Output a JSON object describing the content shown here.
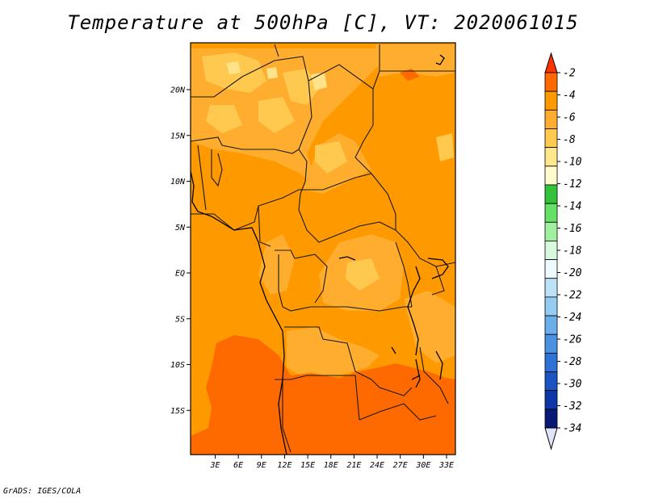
{
  "title": "Temperature at 500hPa [C], VT: 2020061015",
  "credit": "GrADS: IGES/COLA",
  "map": {
    "lat_labels": [
      {
        "label": "20N",
        "lat": 20
      },
      {
        "label": "15N",
        "lat": 15
      },
      {
        "label": "10N",
        "lat": 10
      },
      {
        "label": "5N",
        "lat": 5
      },
      {
        "label": "EQ",
        "lat": 0
      },
      {
        "label": "5S",
        "lat": -5
      },
      {
        "label": "10S",
        "lat": -10
      },
      {
        "label": "15S",
        "lat": -15
      }
    ],
    "lon_labels": [
      {
        "label": "3E",
        "lon": 3
      },
      {
        "label": "6E",
        "lon": 6
      },
      {
        "label": "9E",
        "lon": 9
      },
      {
        "label": "12E",
        "lon": 12
      },
      {
        "label": "15E",
        "lon": 15
      },
      {
        "label": "18E",
        "lon": 18
      },
      {
        "label": "21E",
        "lon": 21
      },
      {
        "label": "24E",
        "lon": 24
      },
      {
        "label": "27E",
        "lon": 27
      },
      {
        "label": "30E",
        "lon": 30
      },
      {
        "label": "33E",
        "lon": 33
      }
    ],
    "field_colors": {
      "warm_-2": "#ff6a00",
      "warm_-4": "#ff9900",
      "warm_-6": "#ffad2e",
      "warm_-8": "#ffc84f",
      "warm_-10": "#ffe28a"
    }
  },
  "colorbar": {
    "labels": [
      "-2",
      "-4",
      "-6",
      "-8",
      "-10",
      "-12",
      "-14",
      "-16",
      "-18",
      "-20",
      "-22",
      "-24",
      "-26",
      "-28",
      "-30",
      "-32",
      "-34"
    ],
    "colors": [
      "#ff3300",
      "#ff6a00",
      "#ff9900",
      "#ffad2e",
      "#ffc84f",
      "#ffe88c",
      "#fffbcc",
      "#33c23a",
      "#66e066",
      "#a0f0a0",
      "#d8fadc",
      "#edfaff",
      "#bde2f7",
      "#96ccf2",
      "#6aafe9",
      "#4b91e2",
      "#2e72d6",
      "#1b54c2",
      "#0d36a6",
      "#081a75",
      "#e0e4f7"
    ],
    "top_color": "#ff3300",
    "bottom_color": "#e0e4f7"
  }
}
